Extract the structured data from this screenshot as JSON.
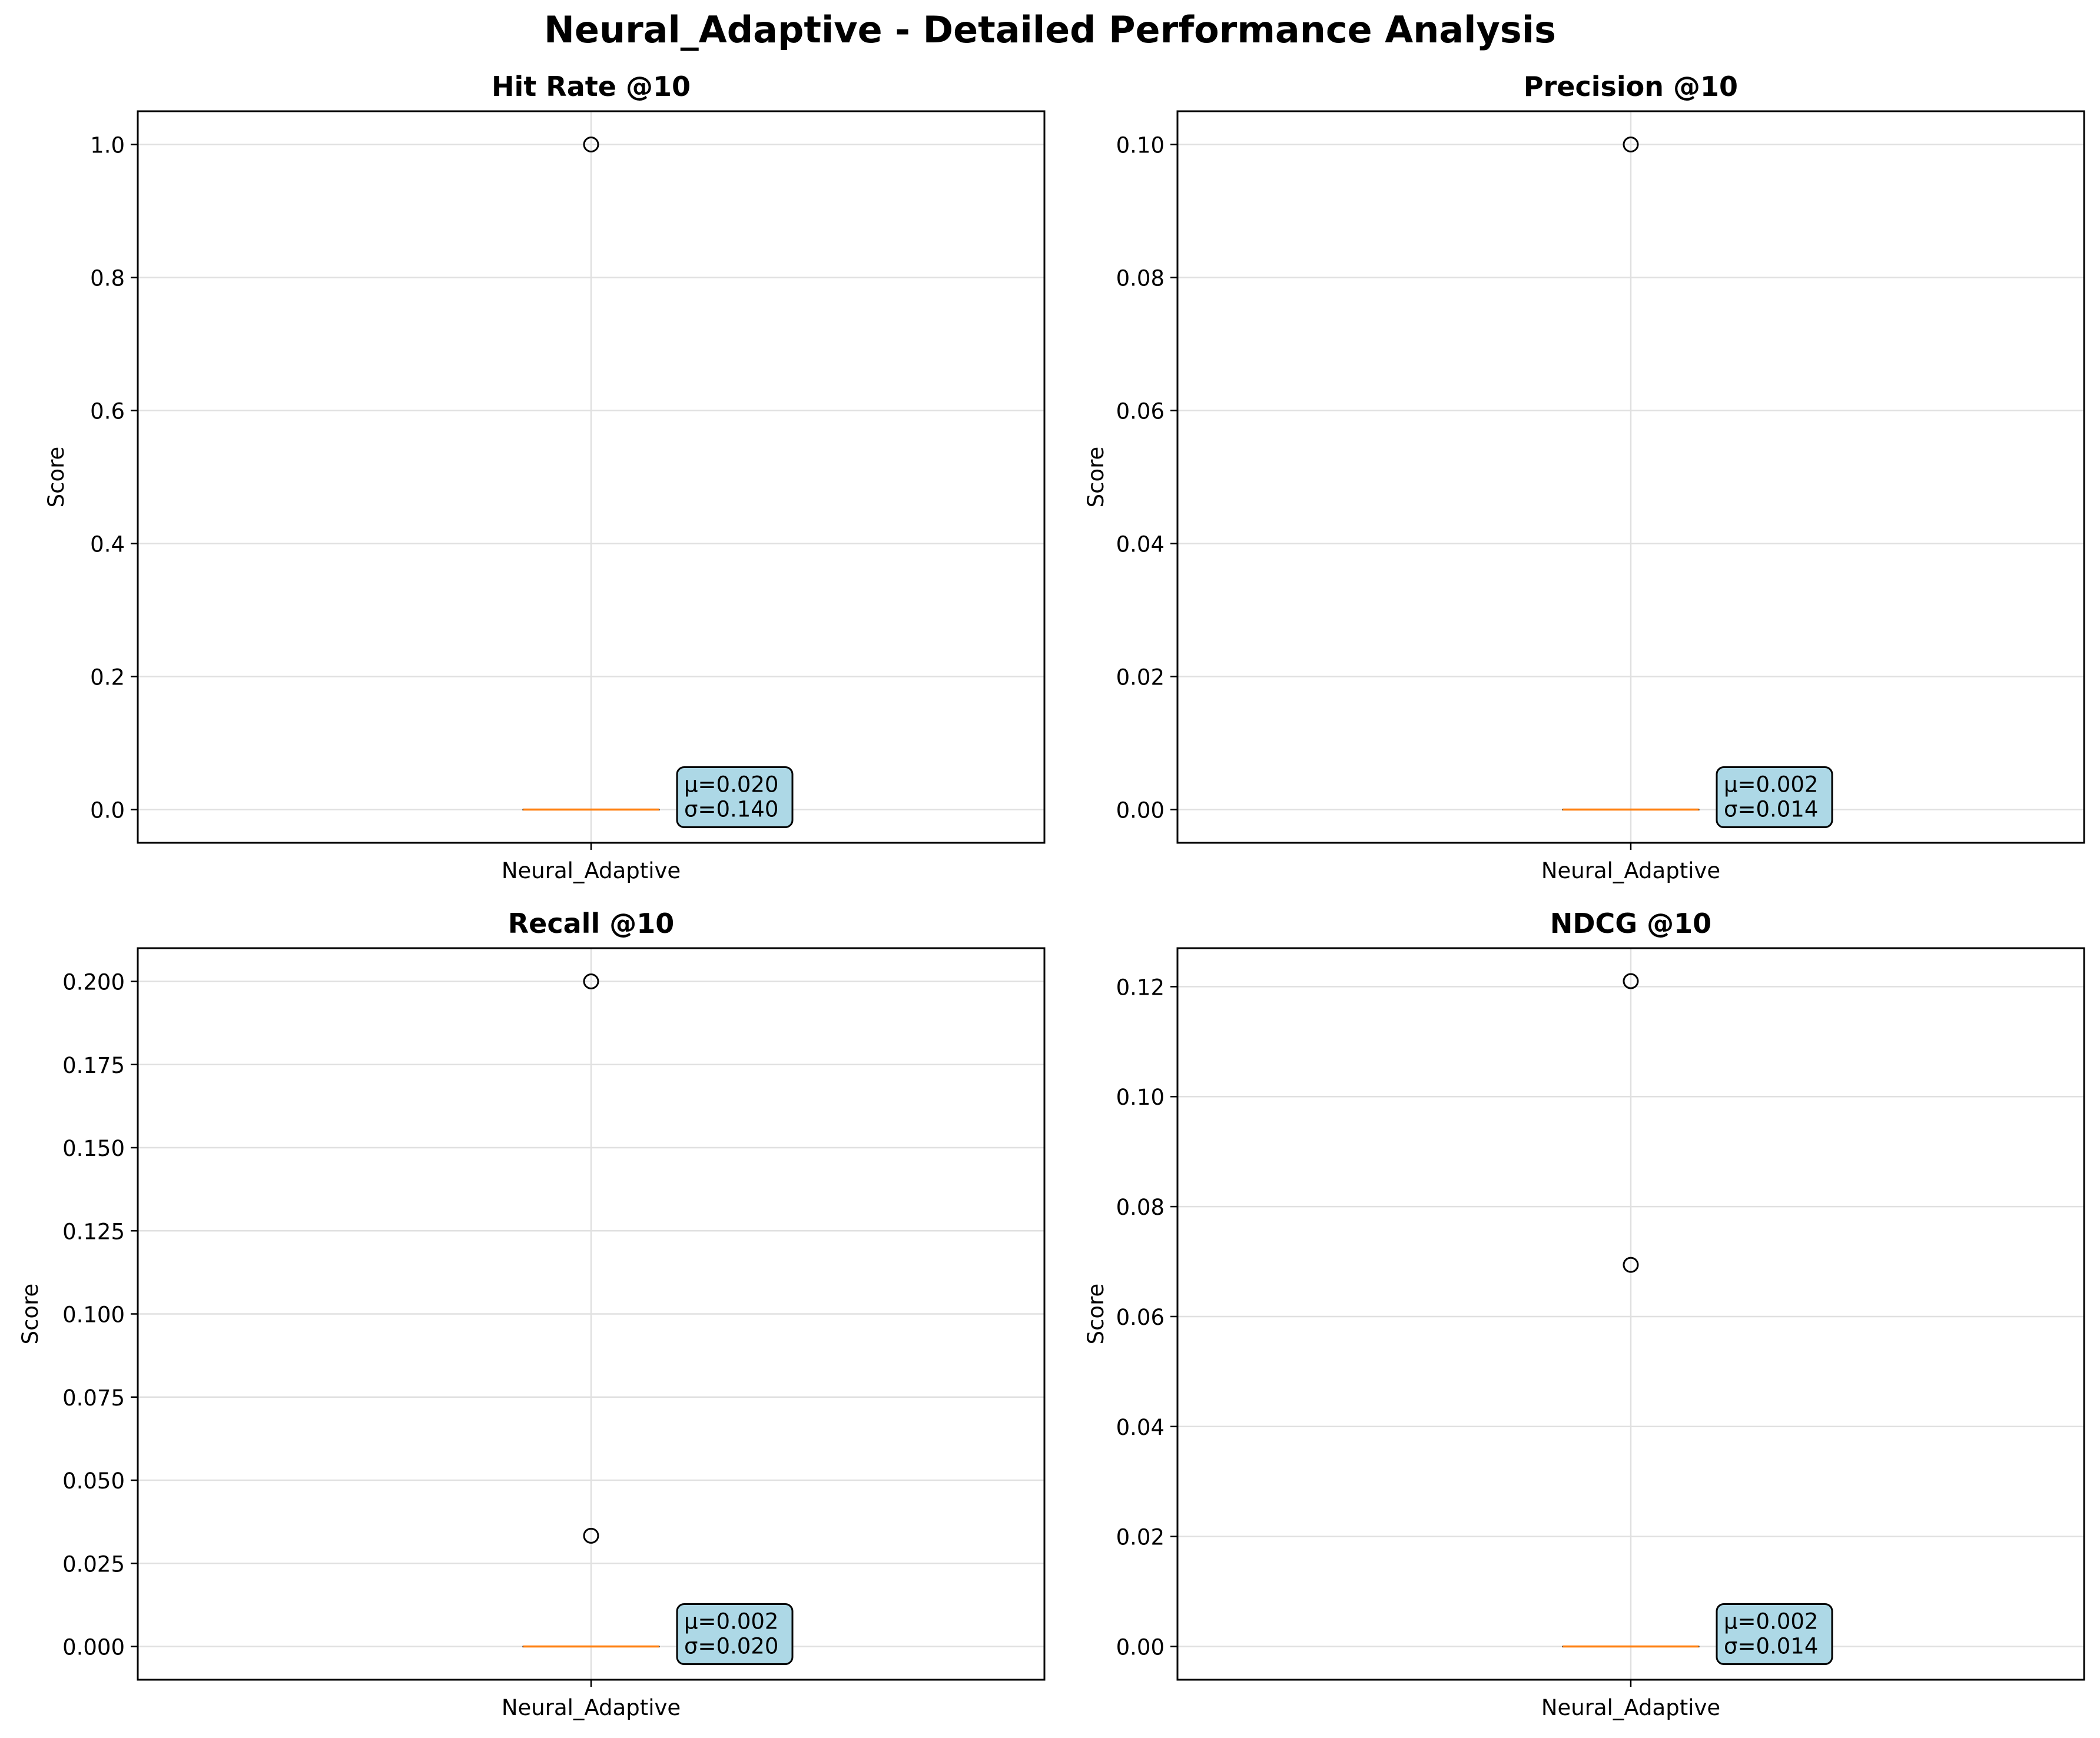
{
  "figure_title": "Neural_Adaptive - Detailed Performance Analysis",
  "colors": {
    "median": "#ff7f0e",
    "annotation_box": "#add8e6",
    "grid": "#e0e0e0",
    "axes": "#000000"
  },
  "chart_data": [
    {
      "type": "box",
      "title": "Hit Rate @10",
      "ylabel": "Score",
      "categories": [
        "Neural_Adaptive"
      ],
      "ylim": [
        -0.05,
        1.05
      ],
      "yticks": [
        0.0,
        0.2,
        0.4,
        0.6,
        0.8,
        1.0
      ],
      "ytick_labels": [
        "0.0",
        "0.2",
        "0.4",
        "0.6",
        "0.8",
        "1.0"
      ],
      "box": {
        "q1": 0.0,
        "median": 0.0,
        "q3": 0.0,
        "whisker_low": 0.0,
        "whisker_high": 0.0
      },
      "outliers": [
        1.0
      ],
      "annotation": [
        "μ=0.020",
        "σ=0.140"
      ],
      "grid": true
    },
    {
      "type": "box",
      "title": "Precision @10",
      "ylabel": "Score",
      "categories": [
        "Neural_Adaptive"
      ],
      "ylim": [
        -0.005,
        0.105
      ],
      "yticks": [
        0.0,
        0.02,
        0.04,
        0.06,
        0.08,
        0.1
      ],
      "ytick_labels": [
        "0.00",
        "0.02",
        "0.04",
        "0.06",
        "0.08",
        "0.10"
      ],
      "box": {
        "q1": 0.0,
        "median": 0.0,
        "q3": 0.0,
        "whisker_low": 0.0,
        "whisker_high": 0.0
      },
      "outliers": [
        0.1
      ],
      "annotation": [
        "μ=0.002",
        "σ=0.014"
      ],
      "grid": true
    },
    {
      "type": "box",
      "title": "Recall @10",
      "ylabel": "Score",
      "categories": [
        "Neural_Adaptive"
      ],
      "ylim": [
        -0.01,
        0.21
      ],
      "yticks": [
        0.0,
        0.025,
        0.05,
        0.075,
        0.1,
        0.125,
        0.15,
        0.175,
        0.2
      ],
      "ytick_labels": [
        "0.000",
        "0.025",
        "0.050",
        "0.075",
        "0.100",
        "0.125",
        "0.150",
        "0.175",
        "0.200"
      ],
      "box": {
        "q1": 0.0,
        "median": 0.0,
        "q3": 0.0,
        "whisker_low": 0.0,
        "whisker_high": 0.0
      },
      "outliers": [
        0.2,
        0.0333
      ],
      "annotation": [
        "μ=0.002",
        "σ=0.020"
      ],
      "grid": true
    },
    {
      "type": "box",
      "title": "NDCG @10",
      "ylabel": "Score",
      "categories": [
        "Neural_Adaptive"
      ],
      "ylim": [
        -0.00605,
        0.127
      ],
      "yticks": [
        0.0,
        0.02,
        0.04,
        0.06,
        0.08,
        0.1,
        0.12
      ],
      "ytick_labels": [
        "0.00",
        "0.02",
        "0.04",
        "0.06",
        "0.08",
        "0.10",
        "0.12"
      ],
      "box": {
        "q1": 0.0,
        "median": 0.0,
        "q3": 0.0,
        "whisker_low": 0.0,
        "whisker_high": 0.0
      },
      "outliers": [
        0.121,
        0.0694
      ],
      "annotation": [
        "μ=0.002",
        "σ=0.014"
      ],
      "grid": true
    }
  ]
}
